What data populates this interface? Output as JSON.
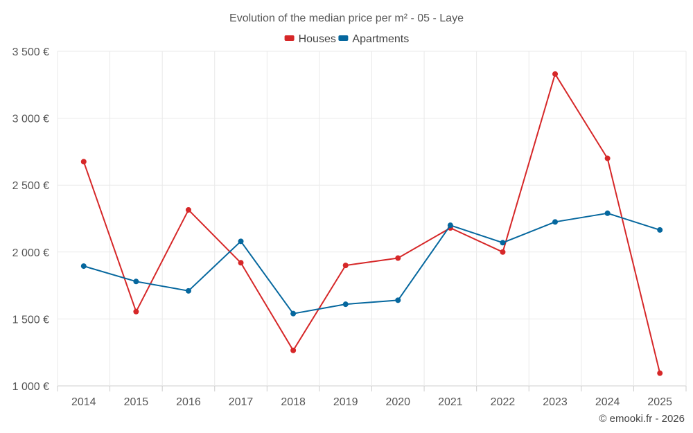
{
  "chart_data": {
    "type": "line",
    "title": "Evolution of the median price per m² - 05 - Laye",
    "categories": [
      "2014",
      "2015",
      "2016",
      "2017",
      "2018",
      "2019",
      "2020",
      "2021",
      "2022",
      "2023",
      "2024",
      "2025"
    ],
    "series": [
      {
        "name": "Houses",
        "color": "#d62728",
        "values": [
          2675,
          1555,
          2315,
          1920,
          1265,
          1900,
          1955,
          2180,
          2000,
          3330,
          2700,
          1095
        ]
      },
      {
        "name": "Apartments",
        "color": "#05679e",
        "values": [
          1895,
          1780,
          1710,
          2080,
          1540,
          1610,
          1640,
          2200,
          2070,
          2225,
          2290,
          2165
        ]
      }
    ],
    "ylim": [
      1000,
      3500
    ],
    "yticks": [
      1000,
      1500,
      2000,
      2500,
      3000,
      3500
    ],
    "ytick_labels": [
      "1 000 €",
      "1 500 €",
      "2 000 €",
      "2 500 €",
      "3 000 €",
      "3 500 €"
    ],
    "xlabel": "",
    "ylabel": "",
    "grid": true,
    "legend_position": "top-center"
  },
  "credit": "© emooki.fr - 2026"
}
